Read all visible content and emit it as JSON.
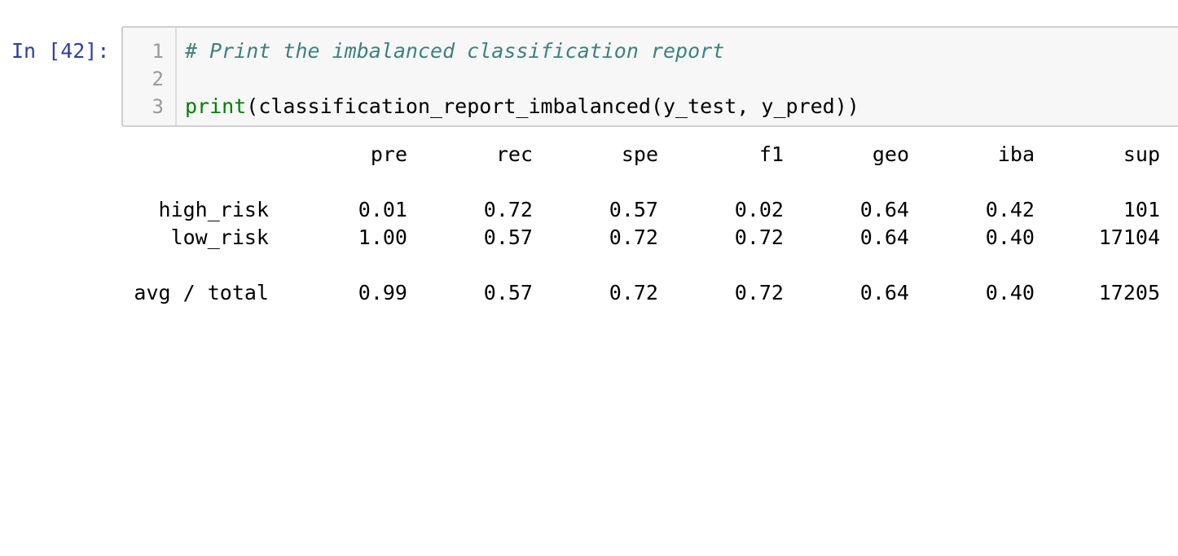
{
  "cell": {
    "prompt": "In [42]:",
    "lines": [
      {
        "number": "1",
        "comment": "# Print the imbalanced classification report",
        "builtin": "",
        "code": ""
      },
      {
        "number": "2",
        "comment": "",
        "builtin": "",
        "code": ""
      },
      {
        "number": "3",
        "comment": "",
        "builtin": "print",
        "code": "(classification_report_imbalanced(y_test, y_pred))"
      }
    ]
  },
  "output": {
    "headers": [
      "pre",
      "rec",
      "spe",
      "f1",
      "geo",
      "iba",
      "sup"
    ],
    "rows": [
      {
        "label": "high_risk",
        "values": [
          "0.01",
          "0.72",
          "0.57",
          "0.02",
          "0.64",
          "0.42",
          "101"
        ]
      },
      {
        "label": "low_risk",
        "values": [
          "1.00",
          "0.57",
          "0.72",
          "0.72",
          "0.64",
          "0.40",
          "17104"
        ]
      }
    ],
    "total": {
      "label": "avg / total",
      "values": [
        "0.99",
        "0.57",
        "0.72",
        "0.72",
        "0.64",
        "0.40",
        "17205"
      ]
    }
  }
}
